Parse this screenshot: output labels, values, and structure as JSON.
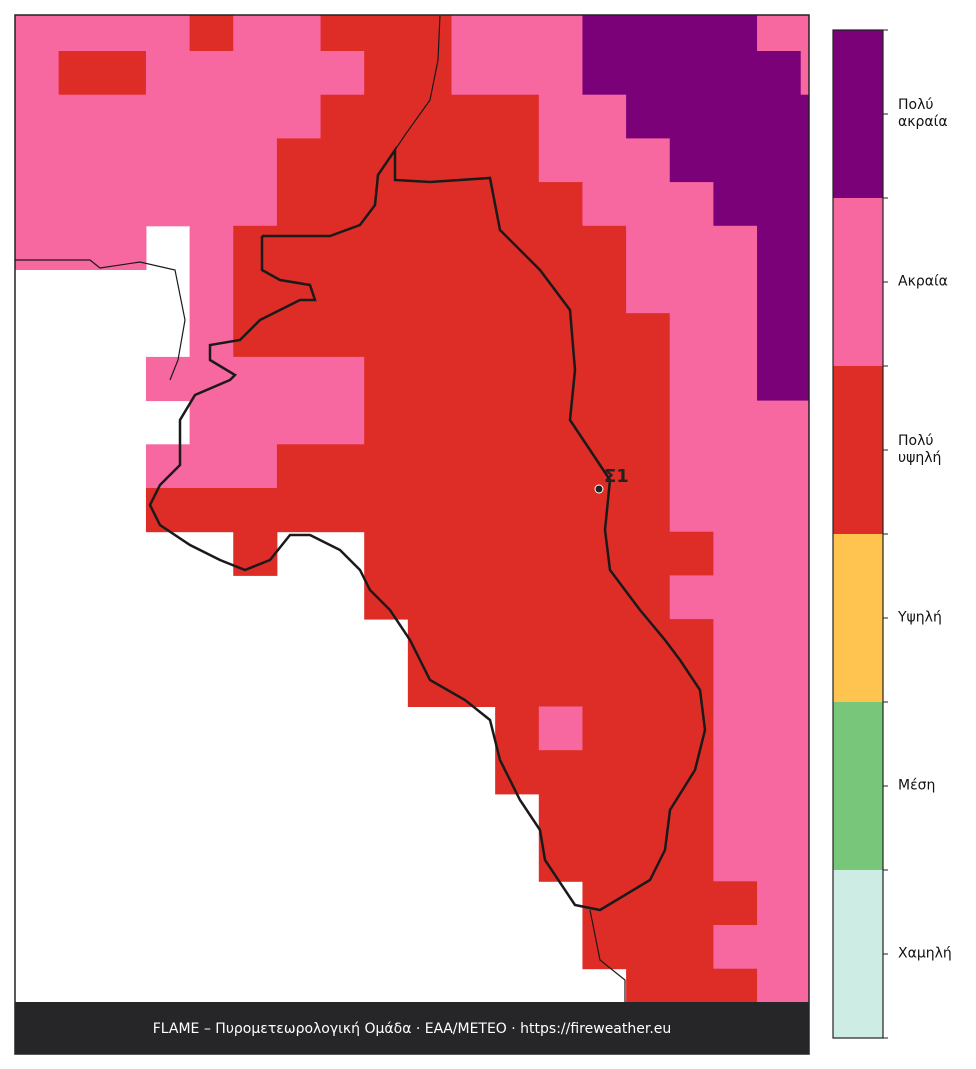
{
  "map": {
    "grid": [
      [
        4,
        4,
        4,
        4,
        3,
        4,
        4,
        3,
        3,
        3,
        4,
        4,
        4,
        5,
        5,
        5,
        5,
        4,
        4
      ],
      [
        4,
        3,
        3,
        4,
        4,
        4,
        4,
        4,
        3,
        3,
        4,
        4,
        4,
        5,
        5,
        5,
        5,
        5,
        4
      ],
      [
        4,
        4,
        4,
        4,
        4,
        4,
        4,
        3,
        3,
        3,
        3,
        3,
        4,
        4,
        5,
        5,
        5,
        5,
        5
      ],
      [
        4,
        4,
        4,
        4,
        4,
        4,
        3,
        3,
        3,
        3,
        3,
        3,
        4,
        4,
        4,
        5,
        5,
        5,
        5
      ],
      [
        4,
        4,
        4,
        4,
        4,
        4,
        3,
        3,
        3,
        3,
        3,
        3,
        3,
        4,
        4,
        4,
        5,
        5,
        5
      ],
      [
        4,
        4,
        4,
        null,
        4,
        3,
        3,
        3,
        3,
        3,
        3,
        3,
        3,
        3,
        4,
        4,
        4,
        5,
        5
      ],
      [
        null,
        null,
        null,
        null,
        4,
        3,
        3,
        3,
        3,
        3,
        3,
        3,
        3,
        3,
        4,
        4,
        4,
        5,
        5
      ],
      [
        null,
        null,
        null,
        null,
        4,
        3,
        3,
        3,
        3,
        3,
        3,
        3,
        3,
        3,
        3,
        4,
        4,
        5,
        5
      ],
      [
        null,
        null,
        null,
        4,
        4,
        4,
        4,
        4,
        3,
        3,
        3,
        3,
        3,
        3,
        3,
        4,
        4,
        5,
        5
      ],
      [
        null,
        null,
        null,
        null,
        4,
        4,
        4,
        4,
        3,
        3,
        3,
        3,
        3,
        3,
        3,
        4,
        4,
        4,
        4
      ],
      [
        null,
        null,
        null,
        4,
        4,
        4,
        3,
        3,
        3,
        3,
        3,
        3,
        3,
        3,
        3,
        4,
        4,
        4,
        4
      ],
      [
        null,
        null,
        null,
        3,
        3,
        3,
        3,
        3,
        3,
        3,
        3,
        3,
        3,
        3,
        3,
        4,
        4,
        4,
        4
      ],
      [
        null,
        null,
        null,
        null,
        null,
        3,
        null,
        null,
        3,
        3,
        3,
        3,
        3,
        3,
        3,
        3,
        4,
        4,
        4
      ],
      [
        null,
        null,
        null,
        null,
        null,
        null,
        null,
        null,
        3,
        3,
        3,
        3,
        3,
        3,
        3,
        4,
        4,
        4,
        4
      ],
      [
        null,
        null,
        null,
        null,
        null,
        null,
        null,
        null,
        null,
        3,
        3,
        3,
        3,
        3,
        3,
        3,
        4,
        4,
        4
      ],
      [
        null,
        null,
        null,
        null,
        null,
        null,
        null,
        null,
        null,
        3,
        3,
        3,
        3,
        3,
        3,
        3,
        4,
        4,
        4
      ],
      [
        null,
        null,
        null,
        null,
        null,
        null,
        null,
        null,
        null,
        null,
        null,
        3,
        4,
        3,
        3,
        3,
        4,
        4,
        4
      ],
      [
        null,
        null,
        null,
        null,
        null,
        null,
        null,
        null,
        null,
        null,
        null,
        3,
        3,
        3,
        3,
        3,
        4,
        4,
        4
      ],
      [
        null,
        null,
        null,
        null,
        null,
        null,
        null,
        null,
        null,
        null,
        null,
        null,
        3,
        3,
        3,
        3,
        4,
        4,
        4
      ],
      [
        null,
        null,
        null,
        null,
        null,
        null,
        null,
        null,
        null,
        null,
        null,
        null,
        3,
        3,
        3,
        3,
        4,
        4,
        4
      ],
      [
        null,
        null,
        null,
        null,
        null,
        null,
        null,
        null,
        null,
        null,
        null,
        null,
        null,
        3,
        3,
        3,
        3,
        4,
        4
      ],
      [
        null,
        null,
        null,
        null,
        null,
        null,
        null,
        null,
        null,
        null,
        null,
        null,
        null,
        3,
        3,
        3,
        4,
        4,
        4
      ],
      [
        null,
        null,
        null,
        null,
        null,
        null,
        null,
        null,
        null,
        null,
        null,
        null,
        null,
        null,
        3,
        3,
        3,
        4,
        4
      ]
    ]
  },
  "legend": {
    "levels": [
      {
        "label": "Χαμηλή",
        "color": "#cdece4"
      },
      {
        "label": "Μέση",
        "color": "#78c679"
      },
      {
        "label": "Υψηλή",
        "color": "#fec44f"
      },
      {
        "label": "Πολύ\nυψηλή",
        "color": "#de2d26"
      },
      {
        "label": "Ακραία",
        "color": "#f768a1"
      },
      {
        "label": "Πολύ\nακραία",
        "color": "#7a0177"
      }
    ]
  },
  "station": {
    "label": "Σ1"
  },
  "footer": "FLAME – Πυρομετεωρολογική Ομάδα · ΕΑΑ/METEO · https://fireweather.eu"
}
